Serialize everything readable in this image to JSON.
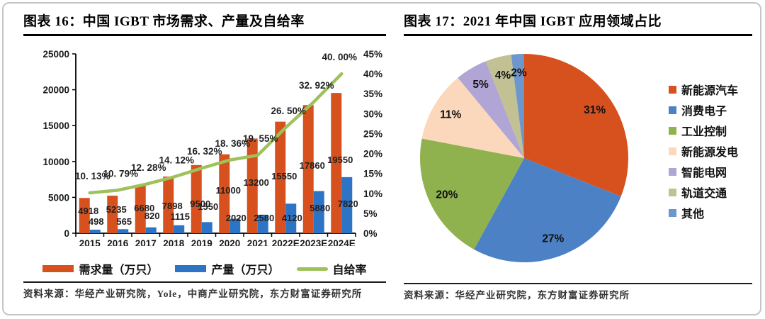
{
  "page": {
    "background": "#ffffff",
    "card_border_color": "#c5c5c5"
  },
  "panels": {
    "left": {
      "title": "图表 16：中国 IGBT 市场需求、产量及自给率",
      "source": "资料来源：华经产业研究院，Yole，中商产业研究院，东方财富证券研究所"
    },
    "right": {
      "title": "图表 17：2021 年中国 IGBT 应用领域占比",
      "source": "资料来源：华经产业研究院，东方财富证券研究所"
    }
  },
  "chart_data": [
    {
      "type": "bar",
      "subtype": "clustered-bar-with-secondary-line",
      "title": "中国 IGBT 市场需求、产量及自给率",
      "categories": [
        "2015",
        "2016",
        "2017",
        "2018",
        "2019",
        "2020",
        "2021",
        "2022E",
        "2023E",
        "2024E"
      ],
      "series": [
        {
          "name": "需求量（万只）",
          "kind": "bar",
          "axis": "left",
          "color": "#d6511e",
          "values": [
            4918,
            5235,
            6680,
            7898,
            9500,
            11000,
            13200,
            15550,
            17860,
            19550
          ],
          "value_labels": [
            "4918",
            "5235",
            "6680",
            "7898",
            "9500",
            "11000",
            "13200",
            "15550",
            "17860",
            "19550"
          ]
        },
        {
          "name": "产量（万只）",
          "kind": "bar",
          "axis": "left",
          "color": "#2e74c6",
          "values": [
            498,
            565,
            820,
            1115,
            1550,
            2020,
            2580,
            4120,
            5880,
            7820
          ],
          "value_labels": [
            "498",
            "565",
            "820",
            "1115",
            "1550",
            "2020",
            "2580",
            "4120",
            "5880",
            "7820"
          ]
        },
        {
          "name": "自给率",
          "kind": "line",
          "axis": "right",
          "color": "#9ec25b",
          "values": [
            10.13,
            10.79,
            12.28,
            14.12,
            16.32,
            18.36,
            19.55,
            26.5,
            32.92,
            40.0
          ],
          "value_labels": [
            "10. 13%",
            "10. 79%",
            "12. 28%",
            "14. 12%",
            "16. 32%",
            "18. 36%",
            "19. 55%",
            "26. 50%",
            "32. 92%",
            "40. 00%"
          ]
        }
      ],
      "left_axis": {
        "min": 0,
        "max": 25000,
        "step": 5000,
        "ticks": [
          "0",
          "5000",
          "10000",
          "15000",
          "20000",
          "25000"
        ]
      },
      "right_axis": {
        "min": 0,
        "max": 45,
        "step": 5,
        "unit": "%",
        "ticks": [
          "0%",
          "5%",
          "10%",
          "15%",
          "20%",
          "25%",
          "30%",
          "35%",
          "40%",
          "45%"
        ]
      },
      "legend_position": "bottom",
      "grid": false
    },
    {
      "type": "pie",
      "title": "2021 年中国 IGBT 应用领域占比",
      "slices": [
        {
          "label": "新能源汽车",
          "value": 31,
          "display": "31%",
          "color": "#d6511e"
        },
        {
          "label": "消费电子",
          "value": 27,
          "display": "27%",
          "color": "#4d81c5"
        },
        {
          "label": "工业控制",
          "value": 20,
          "display": "20%",
          "color": "#8fb14e"
        },
        {
          "label": "新能源发电",
          "value": 11,
          "display": "11%",
          "color": "#fbd8bb"
        },
        {
          "label": "智能电网",
          "value": 5,
          "display": "5%",
          "color": "#b1a5d5"
        },
        {
          "label": "轨道交通",
          "value": 4,
          "display": "4%",
          "color": "#c2c193"
        },
        {
          "label": "其他",
          "value": 2,
          "display": "2%",
          "color": "#6d96cd"
        }
      ],
      "start_angle_deg": 0,
      "direction": "clockwise",
      "legend_position": "right"
    }
  ]
}
